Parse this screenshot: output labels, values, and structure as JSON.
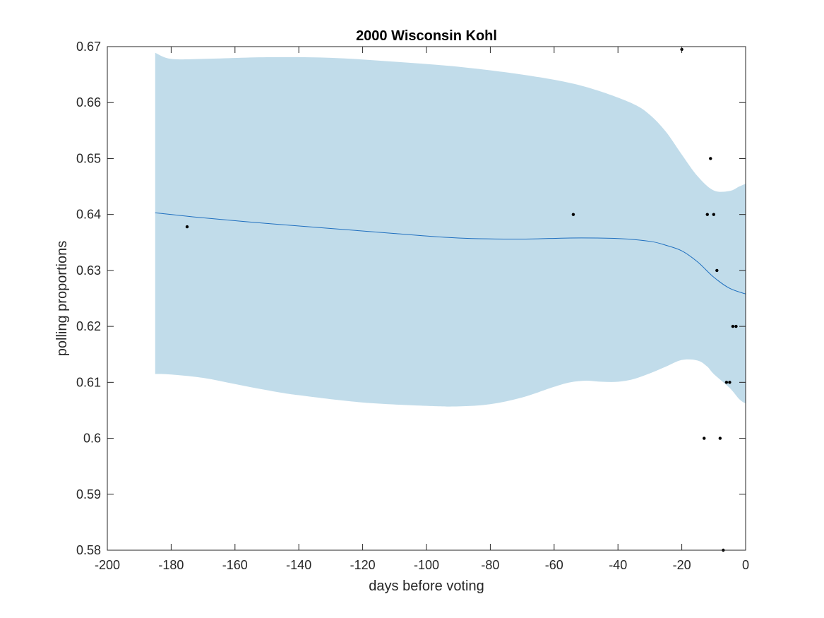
{
  "colors": {
    "band": "#c1dcea",
    "line": "#1f6fbf",
    "points": "#000000",
    "axis": "#262626"
  },
  "chart_data": {
    "type": "line",
    "title": "2000 Wisconsin Kohl",
    "xlabel": "days before voting",
    "ylabel": "polling proportions",
    "xlim": [
      -200,
      0
    ],
    "ylim": [
      0.58,
      0.67
    ],
    "grid": false,
    "x_ticks": [
      -200,
      -180,
      -160,
      -140,
      -120,
      -100,
      -80,
      -60,
      -40,
      -20,
      0
    ],
    "x_tick_labels": [
      "-200",
      "-180",
      "-160",
      "-140",
      "-120",
      "-100",
      "-80",
      "-60",
      "-40",
      "-20",
      "0"
    ],
    "y_ticks": [
      0.58,
      0.59,
      0.6,
      0.61,
      0.62,
      0.63,
      0.64,
      0.65,
      0.66,
      0.67
    ],
    "y_tick_labels": [
      "0.58",
      "0.59",
      "0.6",
      "0.61",
      "0.62",
      "0.63",
      "0.64",
      "0.65",
      "0.66",
      "0.67"
    ],
    "fit_line": {
      "x": [
        -185,
        -170,
        -150,
        -130,
        -110,
        -90,
        -70,
        -55,
        -40,
        -30,
        -25,
        -20,
        -15,
        -10,
        -5,
        0
      ],
      "y": [
        0.6403,
        0.6394,
        0.6384,
        0.6375,
        0.6366,
        0.6358,
        0.6356,
        0.6358,
        0.6357,
        0.6352,
        0.6345,
        0.6335,
        0.6315,
        0.6288,
        0.6268,
        0.6258
      ]
    },
    "band_upper": {
      "x": [
        -185,
        -180,
        -170,
        -150,
        -130,
        -110,
        -90,
        -70,
        -55,
        -45,
        -35,
        -30,
        -25,
        -20,
        -15,
        -10,
        -5,
        -2,
        0
      ],
      "y": [
        0.6689,
        0.6678,
        0.6678,
        0.6681,
        0.668,
        0.6673,
        0.6664,
        0.665,
        0.6635,
        0.6619,
        0.6597,
        0.6578,
        0.6548,
        0.6507,
        0.6468,
        0.6443,
        0.6442,
        0.645,
        0.6455
      ]
    },
    "band_lower": {
      "x": [
        -185,
        -180,
        -170,
        -160,
        -150,
        -140,
        -120,
        -100,
        -90,
        -80,
        -70,
        -60,
        -55,
        -50,
        -45,
        -40,
        -35,
        -30,
        -25,
        -20,
        -15,
        -12,
        -10,
        -5,
        -2,
        0
      ],
      "y": [
        0.6115,
        0.6114,
        0.6108,
        0.6097,
        0.6086,
        0.6077,
        0.6064,
        0.6058,
        0.6057,
        0.6061,
        0.6073,
        0.6092,
        0.61,
        0.6103,
        0.6101,
        0.6101,
        0.6106,
        0.6116,
        0.6128,
        0.614,
        0.6139,
        0.6128,
        0.6115,
        0.609,
        0.607,
        0.6062
      ]
    },
    "points": [
      {
        "x": -175,
        "y": 0.6378
      },
      {
        "x": -54,
        "y": 0.64
      },
      {
        "x": -20,
        "y": 0.6695
      },
      {
        "x": -11,
        "y": 0.65
      },
      {
        "x": -12,
        "y": 0.64
      },
      {
        "x": -10,
        "y": 0.64
      },
      {
        "x": -9,
        "y": 0.63
      },
      {
        "x": -4,
        "y": 0.62
      },
      {
        "x": -3,
        "y": 0.62
      },
      {
        "x": -6,
        "y": 0.61
      },
      {
        "x": -5,
        "y": 0.61
      },
      {
        "x": -13,
        "y": 0.6
      },
      {
        "x": -8,
        "y": 0.6
      },
      {
        "x": -7,
        "y": 0.58
      }
    ]
  }
}
